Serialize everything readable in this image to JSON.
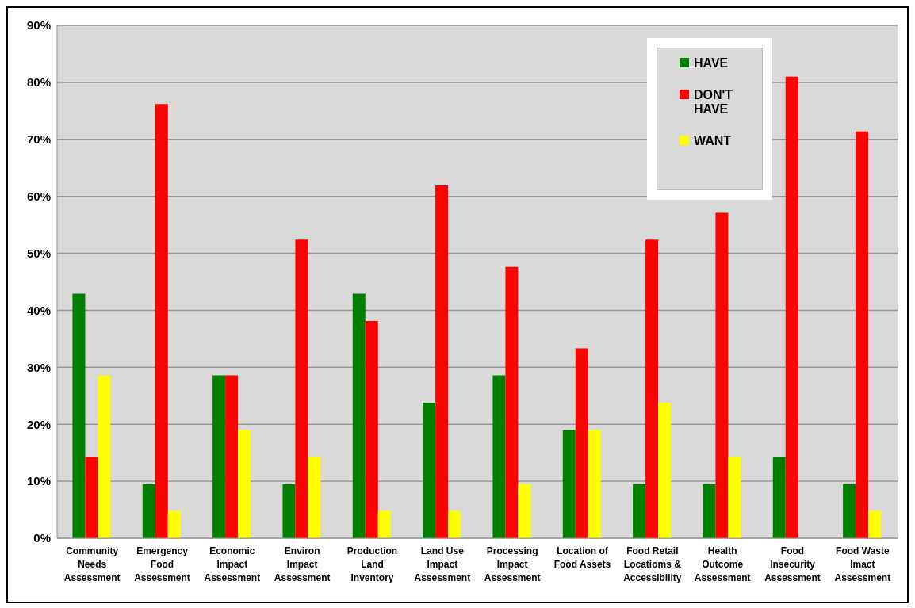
{
  "chart_data": {
    "type": "bar",
    "categories": [
      "Community Needs Assessment",
      "Emergency Food Assessment",
      "Economic Impact Assessment",
      "Environ Impact Assessment",
      "Production Land Inventory",
      "Land Use Impact Assessment",
      "Processing Impact Assessment",
      "Location of Food Assets",
      "Food Retail Locatioms & Accessibility",
      "Health Outcome Assessment",
      "Food Insecurity Assessment",
      "Food Waste Imact Assessment"
    ],
    "series": [
      {
        "name": "HAVE",
        "color": "#008000",
        "values": [
          42.9,
          9.5,
          28.6,
          9.5,
          42.9,
          23.8,
          28.6,
          19.0,
          9.5,
          9.5,
          14.3,
          9.5
        ]
      },
      {
        "name": "DON'T HAVE",
        "color": "#ff0000",
        "values": [
          14.3,
          76.2,
          28.6,
          52.4,
          38.1,
          61.9,
          47.6,
          33.3,
          52.4,
          57.1,
          81.0,
          71.4
        ]
      },
      {
        "name": "WANT",
        "color": "#ffff00",
        "values": [
          28.6,
          4.8,
          19.0,
          14.3,
          4.8,
          4.8,
          9.5,
          19.0,
          23.8,
          14.3,
          0,
          4.8
        ]
      }
    ],
    "ylim": [
      0,
      90
    ],
    "yticks": [
      {
        "value": 0,
        "label": "0%"
      },
      {
        "value": 10,
        "label": "10%"
      },
      {
        "value": 20,
        "label": "20%"
      },
      {
        "value": 30,
        "label": "30%"
      },
      {
        "value": 40,
        "label": "40%"
      },
      {
        "value": 50,
        "label": "50%"
      },
      {
        "value": 60,
        "label": "60%"
      },
      {
        "value": 70,
        "label": "70%"
      },
      {
        "value": 80,
        "label": "80%"
      },
      {
        "value": 90,
        "label": "90%"
      }
    ],
    "grid": "y",
    "legend": "top right"
  }
}
